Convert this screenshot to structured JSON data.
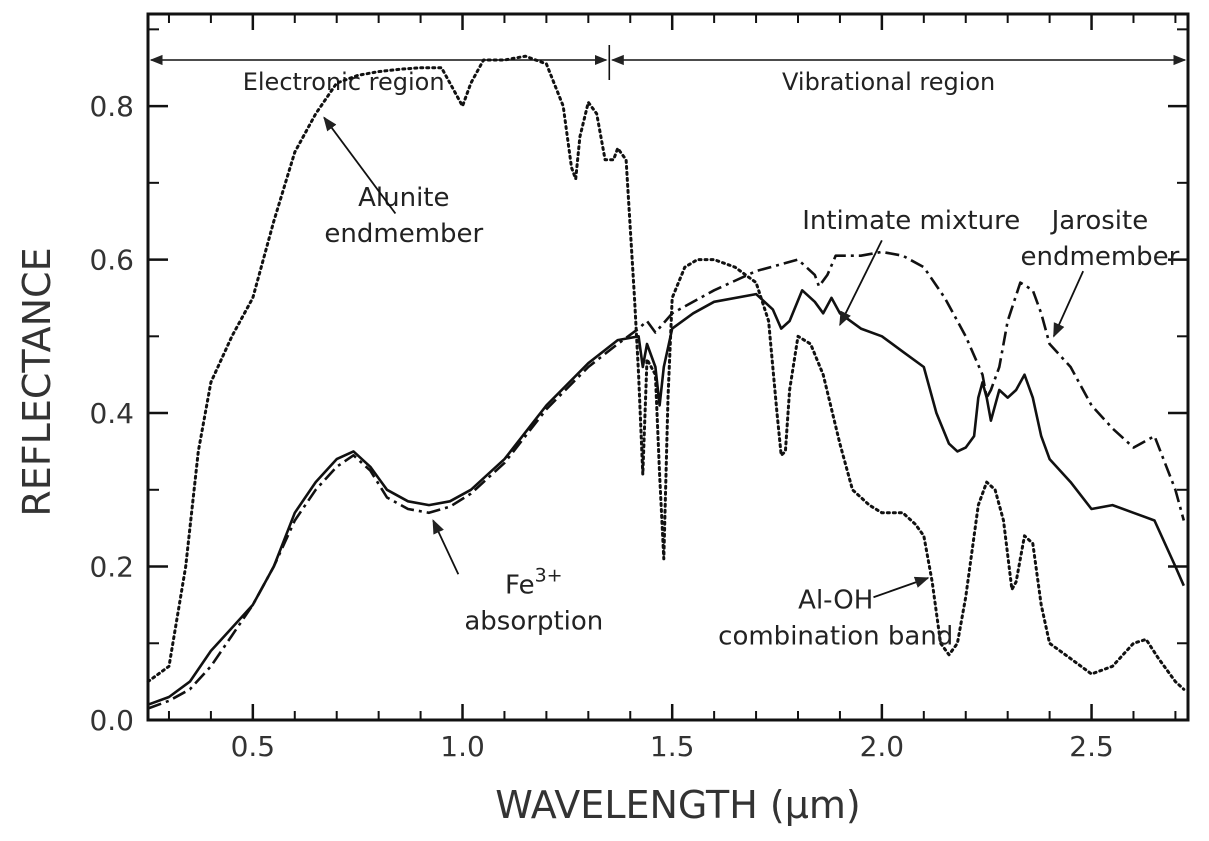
{
  "chart_data": {
    "type": "line",
    "xlabel": "WAVELENGTH (μm)",
    "ylabel": "REFLECTANCE",
    "xlim": [
      0.25,
      2.73
    ],
    "ylim": [
      0.0,
      0.92
    ],
    "x_ticks": [
      {
        "value": 0.5,
        "label": "0.5"
      },
      {
        "value": 1.0,
        "label": "1.0"
      },
      {
        "value": 1.5,
        "label": "1.5"
      },
      {
        "value": 2.0,
        "label": "2.0"
      },
      {
        "value": 2.5,
        "label": "2.5"
      }
    ],
    "y_ticks": [
      {
        "value": 0.0,
        "label": "0.0"
      },
      {
        "value": 0.2,
        "label": "0.2"
      },
      {
        "value": 0.4,
        "label": "0.4"
      },
      {
        "value": 0.6,
        "label": "0.6"
      },
      {
        "value": 0.8,
        "label": "0.8"
      }
    ],
    "grid": false,
    "regions": [
      {
        "label": "Electronic region",
        "x_start": 0.25,
        "x_end": 1.35
      },
      {
        "label": "Vibrational region",
        "x_start": 1.35,
        "x_end": 2.73
      }
    ],
    "series": [
      {
        "key": "alunite",
        "style": "dotted",
        "points": [
          [
            0.25,
            0.05
          ],
          [
            0.3,
            0.07
          ],
          [
            0.34,
            0.2
          ],
          [
            0.37,
            0.35
          ],
          [
            0.4,
            0.44
          ],
          [
            0.45,
            0.5
          ],
          [
            0.5,
            0.55
          ],
          [
            0.55,
            0.65
          ],
          [
            0.6,
            0.74
          ],
          [
            0.65,
            0.79
          ],
          [
            0.7,
            0.83
          ],
          [
            0.75,
            0.84
          ],
          [
            0.8,
            0.845
          ],
          [
            0.85,
            0.848
          ],
          [
            0.9,
            0.85
          ],
          [
            0.95,
            0.85
          ],
          [
            0.98,
            0.82
          ],
          [
            1.0,
            0.8
          ],
          [
            1.02,
            0.83
          ],
          [
            1.05,
            0.86
          ],
          [
            1.1,
            0.86
          ],
          [
            1.15,
            0.865
          ],
          [
            1.2,
            0.855
          ],
          [
            1.24,
            0.8
          ],
          [
            1.26,
            0.72
          ],
          [
            1.27,
            0.705
          ],
          [
            1.28,
            0.76
          ],
          [
            1.3,
            0.805
          ],
          [
            1.32,
            0.79
          ],
          [
            1.34,
            0.73
          ],
          [
            1.36,
            0.73
          ],
          [
            1.37,
            0.745
          ],
          [
            1.39,
            0.73
          ],
          [
            1.41,
            0.55
          ],
          [
            1.42,
            0.45
          ],
          [
            1.43,
            0.32
          ],
          [
            1.44,
            0.47
          ],
          [
            1.46,
            0.45
          ],
          [
            1.47,
            0.32
          ],
          [
            1.48,
            0.21
          ],
          [
            1.49,
            0.42
          ],
          [
            1.5,
            0.55
          ],
          [
            1.53,
            0.59
          ],
          [
            1.56,
            0.6
          ],
          [
            1.6,
            0.6
          ],
          [
            1.65,
            0.59
          ],
          [
            1.7,
            0.57
          ],
          [
            1.73,
            0.52
          ],
          [
            1.75,
            0.4
          ],
          [
            1.76,
            0.345
          ],
          [
            1.77,
            0.35
          ],
          [
            1.78,
            0.43
          ],
          [
            1.8,
            0.5
          ],
          [
            1.83,
            0.49
          ],
          [
            1.86,
            0.45
          ],
          [
            1.9,
            0.36
          ],
          [
            1.93,
            0.3
          ],
          [
            1.97,
            0.28
          ],
          [
            2.0,
            0.27
          ],
          [
            2.05,
            0.27
          ],
          [
            2.08,
            0.255
          ],
          [
            2.1,
            0.24
          ],
          [
            2.12,
            0.18
          ],
          [
            2.14,
            0.1
          ],
          [
            2.16,
            0.085
          ],
          [
            2.18,
            0.1
          ],
          [
            2.2,
            0.16
          ],
          [
            2.23,
            0.28
          ],
          [
            2.25,
            0.31
          ],
          [
            2.27,
            0.3
          ],
          [
            2.29,
            0.26
          ],
          [
            2.31,
            0.17
          ],
          [
            2.32,
            0.18
          ],
          [
            2.34,
            0.24
          ],
          [
            2.36,
            0.23
          ],
          [
            2.38,
            0.15
          ],
          [
            2.4,
            0.1
          ],
          [
            2.45,
            0.08
          ],
          [
            2.5,
            0.06
          ],
          [
            2.55,
            0.07
          ],
          [
            2.6,
            0.1
          ],
          [
            2.63,
            0.105
          ],
          [
            2.66,
            0.08
          ],
          [
            2.7,
            0.05
          ],
          [
            2.72,
            0.04
          ]
        ]
      },
      {
        "key": "mixture",
        "style": "solid",
        "points": [
          [
            0.25,
            0.02
          ],
          [
            0.3,
            0.03
          ],
          [
            0.35,
            0.05
          ],
          [
            0.4,
            0.09
          ],
          [
            0.45,
            0.12
          ],
          [
            0.5,
            0.15
          ],
          [
            0.55,
            0.2
          ],
          [
            0.6,
            0.27
          ],
          [
            0.65,
            0.31
          ],
          [
            0.7,
            0.34
          ],
          [
            0.74,
            0.35
          ],
          [
            0.78,
            0.33
          ],
          [
            0.82,
            0.3
          ],
          [
            0.87,
            0.285
          ],
          [
            0.92,
            0.28
          ],
          [
            0.97,
            0.285
          ],
          [
            1.02,
            0.3
          ],
          [
            1.1,
            0.34
          ],
          [
            1.2,
            0.41
          ],
          [
            1.3,
            0.465
          ],
          [
            1.37,
            0.495
          ],
          [
            1.42,
            0.5
          ],
          [
            1.43,
            0.46
          ],
          [
            1.44,
            0.49
          ],
          [
            1.46,
            0.46
          ],
          [
            1.47,
            0.41
          ],
          [
            1.48,
            0.46
          ],
          [
            1.5,
            0.51
          ],
          [
            1.55,
            0.53
          ],
          [
            1.6,
            0.545
          ],
          [
            1.7,
            0.555
          ],
          [
            1.74,
            0.535
          ],
          [
            1.76,
            0.51
          ],
          [
            1.78,
            0.52
          ],
          [
            1.81,
            0.56
          ],
          [
            1.84,
            0.545
          ],
          [
            1.86,
            0.53
          ],
          [
            1.88,
            0.55
          ],
          [
            1.9,
            0.53
          ],
          [
            1.95,
            0.51
          ],
          [
            2.0,
            0.5
          ],
          [
            2.05,
            0.48
          ],
          [
            2.1,
            0.46
          ],
          [
            2.13,
            0.4
          ],
          [
            2.16,
            0.36
          ],
          [
            2.18,
            0.35
          ],
          [
            2.2,
            0.355
          ],
          [
            2.22,
            0.37
          ],
          [
            2.23,
            0.42
          ],
          [
            2.24,
            0.44
          ],
          [
            2.25,
            0.42
          ],
          [
            2.26,
            0.39
          ],
          [
            2.28,
            0.43
          ],
          [
            2.3,
            0.42
          ],
          [
            2.32,
            0.43
          ],
          [
            2.34,
            0.45
          ],
          [
            2.36,
            0.42
          ],
          [
            2.38,
            0.37
          ],
          [
            2.4,
            0.34
          ],
          [
            2.45,
            0.31
          ],
          [
            2.5,
            0.275
          ],
          [
            2.55,
            0.28
          ],
          [
            2.6,
            0.27
          ],
          [
            2.65,
            0.26
          ],
          [
            2.7,
            0.2
          ],
          [
            2.72,
            0.175
          ]
        ]
      },
      {
        "key": "jarosite",
        "style": "dashdot",
        "points": [
          [
            0.25,
            0.015
          ],
          [
            0.3,
            0.025
          ],
          [
            0.35,
            0.04
          ],
          [
            0.4,
            0.07
          ],
          [
            0.45,
            0.11
          ],
          [
            0.5,
            0.15
          ],
          [
            0.55,
            0.2
          ],
          [
            0.6,
            0.26
          ],
          [
            0.65,
            0.3
          ],
          [
            0.7,
            0.33
          ],
          [
            0.74,
            0.345
          ],
          [
            0.78,
            0.325
          ],
          [
            0.82,
            0.29
          ],
          [
            0.87,
            0.275
          ],
          [
            0.92,
            0.27
          ],
          [
            0.97,
            0.278
          ],
          [
            1.02,
            0.295
          ],
          [
            1.1,
            0.335
          ],
          [
            1.2,
            0.405
          ],
          [
            1.3,
            0.46
          ],
          [
            1.37,
            0.49
          ],
          [
            1.42,
            0.51
          ],
          [
            1.44,
            0.52
          ],
          [
            1.46,
            0.505
          ],
          [
            1.5,
            0.53
          ],
          [
            1.6,
            0.56
          ],
          [
            1.7,
            0.585
          ],
          [
            1.8,
            0.6
          ],
          [
            1.84,
            0.58
          ],
          [
            1.85,
            0.565
          ],
          [
            1.87,
            0.58
          ],
          [
            1.89,
            0.605
          ],
          [
            1.95,
            0.605
          ],
          [
            2.0,
            0.61
          ],
          [
            2.05,
            0.605
          ],
          [
            2.1,
            0.59
          ],
          [
            2.15,
            0.55
          ],
          [
            2.2,
            0.5
          ],
          [
            2.24,
            0.45
          ],
          [
            2.25,
            0.42
          ],
          [
            2.26,
            0.43
          ],
          [
            2.28,
            0.46
          ],
          [
            2.3,
            0.52
          ],
          [
            2.33,
            0.57
          ],
          [
            2.36,
            0.56
          ],
          [
            2.38,
            0.53
          ],
          [
            2.4,
            0.49
          ],
          [
            2.45,
            0.46
          ],
          [
            2.5,
            0.41
          ],
          [
            2.55,
            0.38
          ],
          [
            2.6,
            0.355
          ],
          [
            2.65,
            0.37
          ],
          [
            2.7,
            0.3
          ],
          [
            2.72,
            0.26
          ]
        ]
      }
    ],
    "annotations": [
      {
        "key": "alunite",
        "lines": [
          "Alunite",
          "endmember"
        ],
        "anchor": "middle",
        "tx": 0.86,
        "ty": 0.67,
        "line_gap": 0.04,
        "ax0": 0.84,
        "ay0": 0.66,
        "ax1": 0.67,
        "ay1": 0.785
      },
      {
        "key": "mixture",
        "lines": [
          "Intimate mixture"
        ],
        "anchor": "middle",
        "tx": 2.07,
        "ty": 0.64,
        "line_gap": 0.04,
        "ax0": 2.0,
        "ay0": 0.625,
        "ax1": 1.9,
        "ay1": 0.515
      },
      {
        "key": "jarosite",
        "lines": [
          "Jarosite",
          "endmember"
        ],
        "anchor": "middle",
        "tx": 2.52,
        "ty": 0.64,
        "line_gap": 0.04,
        "ax0": 2.48,
        "ay0": 0.585,
        "ax1": 2.41,
        "ay1": 0.5
      },
      {
        "key": "fe3",
        "lines": [
          "Fe",
          "absorption"
        ],
        "sup": "3+",
        "anchor": "middle",
        "tx": 1.17,
        "ty": 0.165,
        "line_gap": 0.04,
        "ax0": 0.99,
        "ay0": 0.19,
        "ax1": 0.93,
        "ay1": 0.26
      },
      {
        "key": "aloh",
        "lines": [
          "Al-OH",
          "combination band"
        ],
        "anchor": "middle",
        "tx": 1.89,
        "ty": 0.145,
        "line_gap": 0.04,
        "ax0": 1.98,
        "ay0": 0.16,
        "ax1": 2.11,
        "ay1": 0.185
      }
    ]
  }
}
